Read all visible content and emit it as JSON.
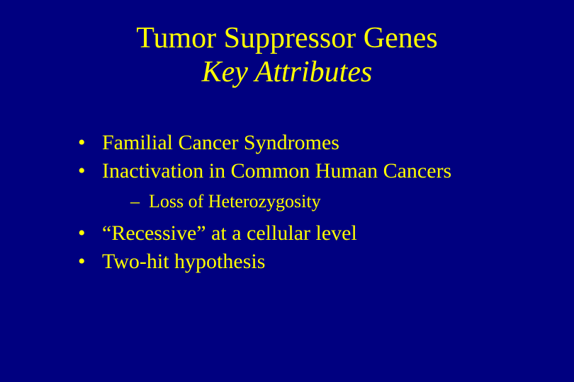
{
  "slide": {
    "background_color": "#000080",
    "text_color": "#ffff00",
    "font_family": "Times New Roman",
    "title": {
      "line1": "Tumor Suppressor Genes",
      "line2": "Key Attributes",
      "line1_fontsize": 42,
      "line2_fontsize": 42,
      "line2_italic": true,
      "align": "center"
    },
    "bullets": [
      {
        "text": "Familial Cancer Syndromes",
        "children": []
      },
      {
        "text": "Inactivation in Common Human Cancers",
        "children": [
          {
            "text": "Loss of Heterozygosity"
          }
        ]
      },
      {
        "text": "“Recessive” at a cellular level",
        "children": []
      },
      {
        "text": "Two-hit hypothesis",
        "children": []
      }
    ],
    "bullet_fontsize_level1": 30,
    "bullet_fontsize_level2": 26
  }
}
